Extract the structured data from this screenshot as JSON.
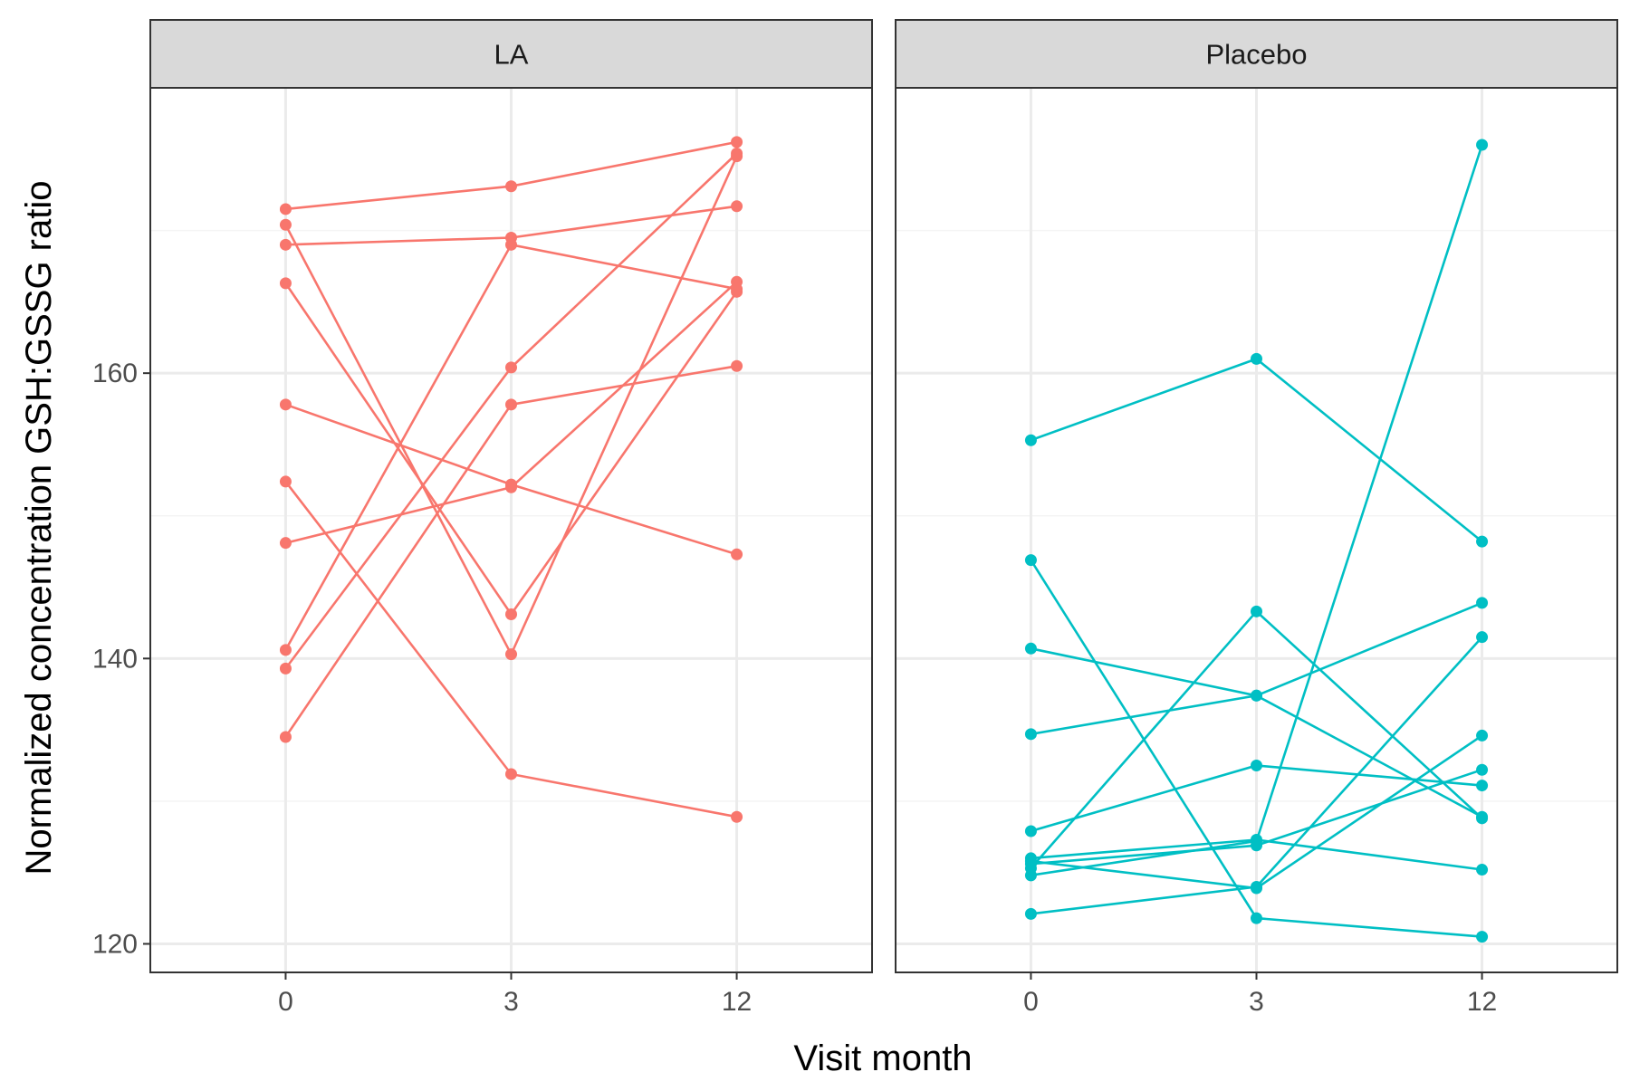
{
  "chart_data": {
    "type": "line",
    "xlabel": "Visit month",
    "ylabel": "Normalized concentration GSH:GSSG ratio",
    "x_categories": [
      "0",
      "3",
      "12"
    ],
    "y_ticks": [
      120,
      140,
      160
    ],
    "ylim": [
      118,
      180
    ],
    "grid": true,
    "legend": "none",
    "panels": [
      {
        "label": "LA",
        "color": "#F8766D",
        "series": [
          {
            "values": [
              171.5,
              173.1,
              176.2
            ]
          },
          {
            "values": [
              170.4,
              140.3,
              175.2
            ]
          },
          {
            "values": [
              169.0,
              169.5,
              171.7
            ]
          },
          {
            "values": [
              166.3,
              143.1,
              165.7
            ]
          },
          {
            "values": [
              157.8,
              152.2,
              147.3
            ]
          },
          {
            "values": [
              152.4,
              131.9,
              128.9
            ]
          },
          {
            "values": [
              148.1,
              152.0,
              166.4
            ]
          },
          {
            "values": [
              140.6,
              169.0,
              165.9
            ]
          },
          {
            "values": [
              139.3,
              160.4,
              175.4
            ]
          },
          {
            "values": [
              134.5,
              157.8,
              160.5
            ]
          }
        ]
      },
      {
        "label": "Placebo",
        "color": "#00BFC4",
        "series": [
          {
            "values": [
              155.3,
              161.0,
              148.2
            ]
          },
          {
            "values": [
              146.9,
              121.8,
              120.5
            ]
          },
          {
            "values": [
              140.7,
              137.4,
              128.9
            ]
          },
          {
            "values": [
              134.7,
              137.4,
              143.9
            ]
          },
          {
            "values": [
              127.9,
              132.5,
              131.1
            ]
          },
          {
            "values": [
              126.0,
              127.3,
              125.2
            ]
          },
          {
            "values": [
              125.6,
              126.9,
              132.2
            ]
          },
          {
            "values": [
              125.3,
              143.3,
              128.8
            ]
          },
          {
            "values": [
              124.8,
              127.2,
              176.0
            ]
          },
          {
            "values": [
              122.1,
              124.0,
              141.5
            ]
          },
          {
            "values": [
              125.8,
              123.9,
              134.6
            ]
          }
        ]
      }
    ]
  }
}
